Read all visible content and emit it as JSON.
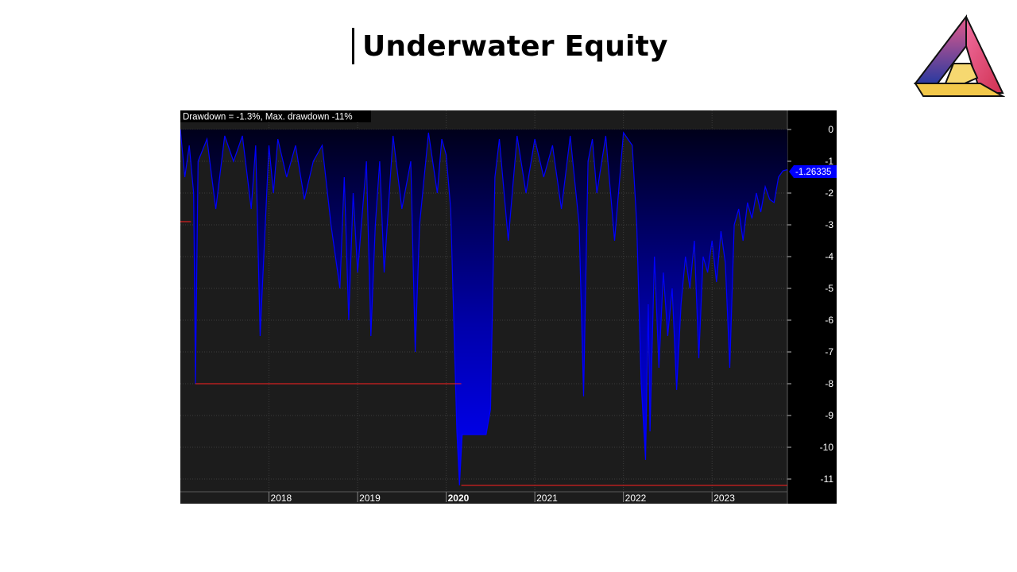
{
  "page": {
    "title": "Underwater Equity"
  },
  "logo": {
    "icon": "triangle-logo-icon"
  },
  "colors": {
    "panel": "#1c1c1c",
    "axis_panel": "#000000",
    "fill": "#0000ff",
    "maxdd_line": "#ff2020",
    "grid": "#3c3c3c",
    "badge": "#0000ff"
  },
  "chart_data": {
    "type": "area",
    "header": "Drawdown = -1.3%, Max. drawdown -11%",
    "current_value_label": "-1.26335",
    "current_value": -1.26335,
    "max_drawdown": -11,
    "ylim": [
      -11.4,
      0.6
    ],
    "yticks": [
      0,
      -1,
      -2,
      -3,
      -4,
      -5,
      -6,
      -7,
      -8,
      -9,
      -10,
      -11
    ],
    "xlim": [
      2017.0,
      2023.85
    ],
    "xticks": [
      {
        "label": "2018",
        "value": 2018,
        "bold": false
      },
      {
        "label": "2019",
        "value": 2019,
        "bold": false
      },
      {
        "label": "2020",
        "value": 2020,
        "bold": true
      },
      {
        "label": "2021",
        "value": 2021,
        "bold": false
      },
      {
        "label": "2022",
        "value": 2022,
        "bold": false
      },
      {
        "label": "2023",
        "value": 2023,
        "bold": false
      }
    ],
    "x": [
      2017.0,
      2017.05,
      2017.1,
      2017.15,
      2017.17,
      2017.2,
      2017.3,
      2017.4,
      2017.5,
      2017.6,
      2017.7,
      2017.8,
      2017.85,
      2017.9,
      2018.0,
      2018.05,
      2018.1,
      2018.2,
      2018.3,
      2018.4,
      2018.5,
      2018.6,
      2018.7,
      2018.8,
      2018.85,
      2018.9,
      2018.95,
      2019.0,
      2019.1,
      2019.15,
      2019.2,
      2019.25,
      2019.3,
      2019.4,
      2019.5,
      2019.6,
      2019.65,
      2019.7,
      2019.8,
      2019.9,
      2019.95,
      2020.0,
      2020.05,
      2020.12,
      2020.15,
      2020.18,
      2020.3,
      2020.45,
      2020.5,
      2020.55,
      2020.6,
      2020.7,
      2020.8,
      2020.9,
      2021.0,
      2021.1,
      2021.2,
      2021.3,
      2021.4,
      2021.5,
      2021.55,
      2021.6,
      2021.65,
      2021.7,
      2021.8,
      2021.9,
      2022.0,
      2022.1,
      2022.15,
      2022.2,
      2022.25,
      2022.28,
      2022.3,
      2022.35,
      2022.4,
      2022.45,
      2022.5,
      2022.55,
      2022.6,
      2022.65,
      2022.7,
      2022.75,
      2022.8,
      2022.85,
      2022.9,
      2022.95,
      2023.0,
      2023.05,
      2023.1,
      2023.15,
      2023.2,
      2023.25,
      2023.3,
      2023.35,
      2023.4,
      2023.45,
      2023.5,
      2023.55,
      2023.6,
      2023.65,
      2023.7,
      2023.75,
      2023.8,
      2023.85
    ],
    "values": [
      0,
      -1.5,
      -0.5,
      -2.0,
      -8.0,
      -1.0,
      -0.3,
      -2.5,
      -0.2,
      -1.0,
      -0.2,
      -2.5,
      -0.5,
      -6.5,
      -0.5,
      -2.0,
      -0.3,
      -1.5,
      -0.5,
      -2.2,
      -1.0,
      -0.5,
      -3.0,
      -5.0,
      -1.5,
      -6.0,
      -2.0,
      -4.5,
      -1.0,
      -6.5,
      -3.0,
      -1.0,
      -4.5,
      -0.2,
      -2.5,
      -1.0,
      -7.0,
      -3.0,
      -0.1,
      -2.0,
      -0.3,
      -0.8,
      -2.5,
      -9.5,
      -11.2,
      -9.6,
      -9.6,
      -9.6,
      -8.8,
      -1.5,
      -0.3,
      -3.5,
      -0.2,
      -2.0,
      -0.3,
      -1.5,
      -0.5,
      -2.5,
      -0.2,
      -3.0,
      -8.4,
      -1.0,
      -0.3,
      -2.0,
      -0.2,
      -3.5,
      -0.1,
      -0.5,
      -3.0,
      -8.0,
      -10.4,
      -5.5,
      -9.5,
      -4.0,
      -7.5,
      -4.5,
      -6.5,
      -5.0,
      -8.2,
      -5.5,
      -4.0,
      -5.0,
      -3.5,
      -7.2,
      -4.0,
      -4.5,
      -3.5,
      -4.8,
      -3.2,
      -4.2,
      -7.5,
      -3.0,
      -2.5,
      -3.5,
      -2.3,
      -2.8,
      -2.0,
      -2.6,
      -1.8,
      -2.2,
      -2.3,
      -1.5,
      -1.3,
      -1.26335
    ],
    "maxdd_line": [
      {
        "x0": 2017.0,
        "x1": 2017.12,
        "y": -2.9
      },
      {
        "x0": 2017.17,
        "x1": 2020.17,
        "y": -8.0
      },
      {
        "x0": 2020.17,
        "x1": 2023.85,
        "y": -11.2
      }
    ]
  }
}
